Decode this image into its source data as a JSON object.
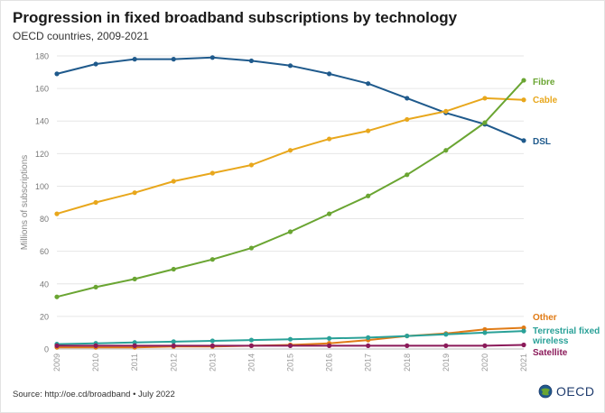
{
  "title": "Progression in fixed broadband subscriptions by technology",
  "subtitle": "OECD countries, 2009-2021",
  "source": "Source: http://oe.cd/broadband • July 2022",
  "logo_text": "OECD",
  "chart_data": {
    "type": "line",
    "ylabel": "Millions of subscriptions",
    "xlabel": "",
    "ylim": [
      0,
      180
    ],
    "yticks": [
      0,
      20,
      40,
      60,
      80,
      100,
      120,
      140,
      160,
      180
    ],
    "x": [
      "2009",
      "2010",
      "2011",
      "2012",
      "2013",
      "2014",
      "2015",
      "2016",
      "2017",
      "2018",
      "2019",
      "2020",
      "2021"
    ],
    "grid": "horizontal",
    "legend": "direct labels at right end of lines",
    "series": [
      {
        "name": "DSL",
        "color": "#1f5a8c",
        "values": [
          169,
          175,
          178,
          178,
          179,
          177,
          174,
          169,
          163,
          154,
          145,
          138,
          128
        ]
      },
      {
        "name": "Cable",
        "color": "#e8a71c",
        "values": [
          83,
          90,
          96,
          103,
          108,
          113,
          122,
          129,
          134,
          141,
          146,
          154,
          153
        ]
      },
      {
        "name": "Fibre",
        "color": "#6aa532",
        "values": [
          32,
          38,
          43,
          49,
          55,
          62,
          72,
          83,
          94,
          107,
          122,
          139,
          165
        ]
      },
      {
        "name": "Other",
        "color": "#e07b16",
        "values": [
          1,
          1,
          1,
          1.5,
          1.5,
          2,
          2.5,
          3.5,
          5.5,
          8,
          9.5,
          12,
          13
        ]
      },
      {
        "name": "Terrestrial fixed wireless",
        "color": "#2aa198",
        "values": [
          3,
          3.5,
          4,
          4.5,
          5,
          5.5,
          6,
          6.5,
          7,
          8,
          9,
          10,
          11
        ]
      },
      {
        "name": "Satellite",
        "color": "#8b1a5a",
        "values": [
          2,
          2,
          2,
          2,
          2,
          2,
          2,
          2,
          2,
          2,
          2,
          2,
          2.5
        ]
      }
    ]
  }
}
